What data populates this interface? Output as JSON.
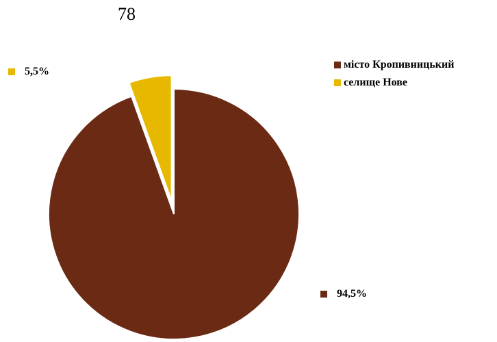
{
  "page_number": "78",
  "colors": {
    "city": "#6B2A14",
    "settlement": "#E6B800"
  },
  "chart_data": {
    "type": "pie",
    "title": "",
    "categories": [
      "місто Кропивницький",
      "селище Нове"
    ],
    "values": [
      94.5,
      5.5
    ],
    "data_labels": [
      "94,5%",
      "5,5%"
    ],
    "exploded": [
      false,
      true
    ],
    "legend_position": "right"
  }
}
